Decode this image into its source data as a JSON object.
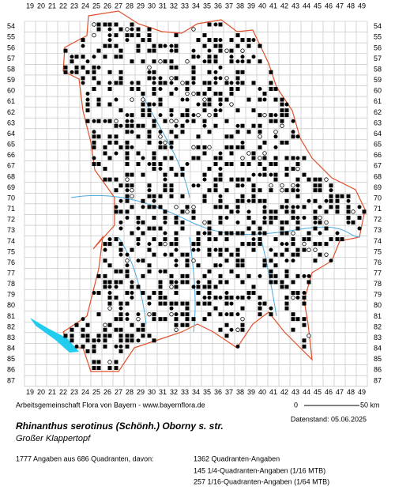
{
  "grid": {
    "x_labels": [
      19,
      20,
      21,
      22,
      23,
      24,
      25,
      26,
      27,
      28,
      29,
      30,
      31,
      32,
      33,
      34,
      35,
      36,
      37,
      38,
      39,
      40,
      41,
      42,
      43,
      44,
      45,
      46,
      47,
      48,
      49
    ],
    "y_labels": [
      54,
      55,
      56,
      57,
      58,
      59,
      60,
      61,
      62,
      63,
      64,
      65,
      66,
      67,
      68,
      69,
      70,
      71,
      72,
      73,
      74,
      75,
      76,
      77,
      78,
      79,
      80,
      81,
      82,
      83,
      84,
      85,
      86,
      87
    ]
  },
  "footer": {
    "credit": "Arbeitsgemeinschaft Flora von Bayern - www.bayernflora.de",
    "scale_start": "0",
    "scale_end": "50 km",
    "date": "Datenstand: 05.06.2025",
    "species": "Rhinanthus serotinus (Schönh.) Oborny s. str.",
    "common_name": "Großer Klappertopf",
    "summary": "1777 Angaben aus 686 Quadranten, davon:",
    "legend": [
      "1362 Quadranten-Angaben",
      "145 1/4-Quadranten-Angaben (1/16 MTB)",
      "257 1/16-Quadranten-Angaben (1/64 MTB)"
    ]
  }
}
